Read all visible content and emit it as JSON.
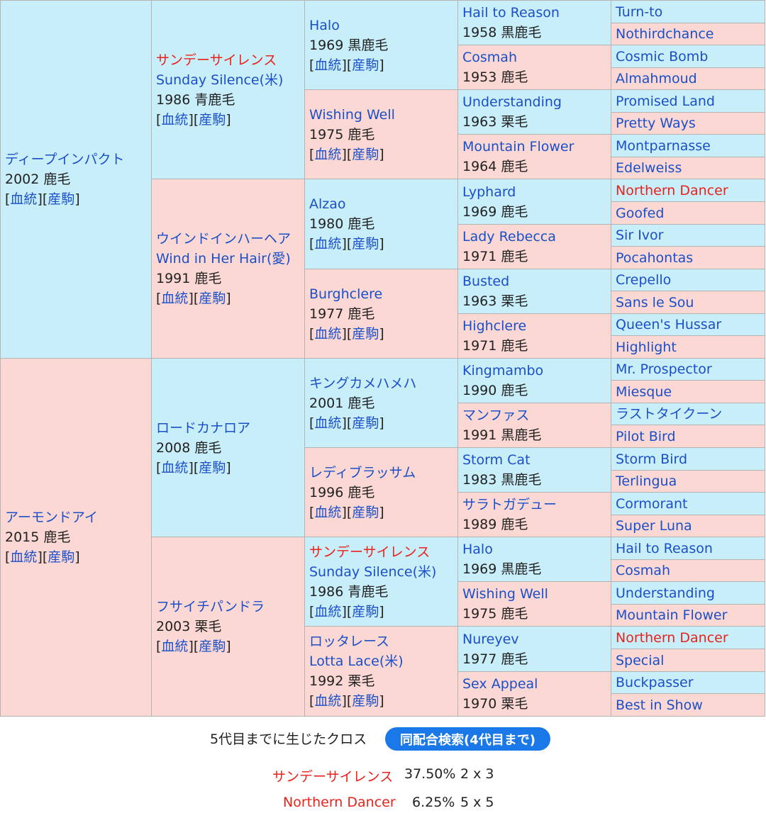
{
  "pedigree": [
    {
      "gen": 1,
      "row": 0,
      "span": 16,
      "sex": "m",
      "name": "ディープインパクト",
      "name_red": false,
      "year_color": "2002 鹿毛",
      "links": true
    },
    {
      "gen": 1,
      "row": 16,
      "span": 16,
      "sex": "f",
      "name": "アーモンドアイ",
      "name_red": false,
      "year_color": "2015 鹿毛",
      "links": true
    },
    {
      "gen": 2,
      "row": 0,
      "span": 8,
      "sex": "m",
      "name": "サンデーサイレンス",
      "name_red": true,
      "subname": "Sunday Silence(米)",
      "year_color": "1986 青鹿毛",
      "links": true
    },
    {
      "gen": 2,
      "row": 8,
      "span": 8,
      "sex": "f",
      "name": "ウインドインハーヘア",
      "name_red": false,
      "subname": "Wind in Her Hair(愛)",
      "year_color": "1991 鹿毛",
      "links": true
    },
    {
      "gen": 2,
      "row": 16,
      "span": 8,
      "sex": "m",
      "name": "ロードカナロア",
      "name_red": false,
      "year_color": "2008 鹿毛",
      "links": true
    },
    {
      "gen": 2,
      "row": 24,
      "span": 8,
      "sex": "f",
      "name": "フサイチパンドラ",
      "name_red": false,
      "year_color": "2003 栗毛",
      "links": true
    },
    {
      "gen": 3,
      "row": 0,
      "span": 4,
      "sex": "m",
      "name": "Halo",
      "name_red": false,
      "year_color": "1969 黒鹿毛",
      "links": true
    },
    {
      "gen": 3,
      "row": 4,
      "span": 4,
      "sex": "f",
      "name": "Wishing Well",
      "name_red": false,
      "year_color": "1975 鹿毛",
      "links": true
    },
    {
      "gen": 3,
      "row": 8,
      "span": 4,
      "sex": "m",
      "name": "Alzao",
      "name_red": false,
      "year_color": "1980 鹿毛",
      "links": true
    },
    {
      "gen": 3,
      "row": 12,
      "span": 4,
      "sex": "f",
      "name": "Burghclere",
      "name_red": false,
      "year_color": "1977 鹿毛",
      "links": true
    },
    {
      "gen": 3,
      "row": 16,
      "span": 4,
      "sex": "m",
      "name": "キングカメハメハ",
      "name_red": false,
      "year_color": "2001 鹿毛",
      "links": true
    },
    {
      "gen": 3,
      "row": 20,
      "span": 4,
      "sex": "f",
      "name": "レディブラッサム",
      "name_red": false,
      "year_color": "1996 鹿毛",
      "links": true
    },
    {
      "gen": 3,
      "row": 24,
      "span": 4,
      "sex": "m",
      "name": "サンデーサイレンス",
      "name_red": true,
      "subname": "Sunday Silence(米)",
      "year_color": "1986 青鹿毛",
      "links": true
    },
    {
      "gen": 3,
      "row": 28,
      "span": 4,
      "sex": "f",
      "name": "ロッタレース",
      "name_red": false,
      "subname": "Lotta Lace(米)",
      "year_color": "1992 栗毛",
      "links": true
    },
    {
      "gen": 4,
      "row": 0,
      "span": 2,
      "sex": "m",
      "name": "Hail to Reason",
      "name_red": false,
      "year_color": "1958 黒鹿毛"
    },
    {
      "gen": 4,
      "row": 2,
      "span": 2,
      "sex": "f",
      "name": "Cosmah",
      "name_red": false,
      "year_color": "1953 鹿毛"
    },
    {
      "gen": 4,
      "row": 4,
      "span": 2,
      "sex": "m",
      "name": "Understanding",
      "name_red": false,
      "year_color": "1963 栗毛"
    },
    {
      "gen": 4,
      "row": 6,
      "span": 2,
      "sex": "f",
      "name": "Mountain Flower",
      "name_red": false,
      "year_color": "1964 鹿毛"
    },
    {
      "gen": 4,
      "row": 8,
      "span": 2,
      "sex": "m",
      "name": "Lyphard",
      "name_red": false,
      "year_color": "1969 鹿毛"
    },
    {
      "gen": 4,
      "row": 10,
      "span": 2,
      "sex": "f",
      "name": "Lady Rebecca",
      "name_red": false,
      "year_color": "1971 鹿毛"
    },
    {
      "gen": 4,
      "row": 12,
      "span": 2,
      "sex": "m",
      "name": "Busted",
      "name_red": false,
      "year_color": "1963 栗毛"
    },
    {
      "gen": 4,
      "row": 14,
      "span": 2,
      "sex": "f",
      "name": "Highclere",
      "name_red": false,
      "year_color": "1971 鹿毛"
    },
    {
      "gen": 4,
      "row": 16,
      "span": 2,
      "sex": "m",
      "name": "Kingmambo",
      "name_red": false,
      "year_color": "1990 鹿毛"
    },
    {
      "gen": 4,
      "row": 18,
      "span": 2,
      "sex": "f",
      "name": "マンファス",
      "name_red": false,
      "year_color": "1991 黒鹿毛"
    },
    {
      "gen": 4,
      "row": 20,
      "span": 2,
      "sex": "m",
      "name": "Storm Cat",
      "name_red": false,
      "year_color": "1983 黒鹿毛"
    },
    {
      "gen": 4,
      "row": 22,
      "span": 2,
      "sex": "f",
      "name": "サラトガデュー",
      "name_red": false,
      "year_color": "1989 鹿毛"
    },
    {
      "gen": 4,
      "row": 24,
      "span": 2,
      "sex": "m",
      "name": "Halo",
      "name_red": false,
      "year_color": "1969 黒鹿毛"
    },
    {
      "gen": 4,
      "row": 26,
      "span": 2,
      "sex": "f",
      "name": "Wishing Well",
      "name_red": false,
      "year_color": "1975 鹿毛"
    },
    {
      "gen": 4,
      "row": 28,
      "span": 2,
      "sex": "m",
      "name": "Nureyev",
      "name_red": false,
      "year_color": "1977 鹿毛"
    },
    {
      "gen": 4,
      "row": 30,
      "span": 2,
      "sex": "f",
      "name": "Sex Appeal",
      "name_red": false,
      "year_color": "1970 栗毛"
    },
    {
      "gen": 5,
      "row": 0,
      "span": 1,
      "sex": "m",
      "name": "Turn-to",
      "name_red": false
    },
    {
      "gen": 5,
      "row": 1,
      "span": 1,
      "sex": "f",
      "name": "Nothirdchance",
      "name_red": false
    },
    {
      "gen": 5,
      "row": 2,
      "span": 1,
      "sex": "m",
      "name": "Cosmic Bomb",
      "name_red": false
    },
    {
      "gen": 5,
      "row": 3,
      "span": 1,
      "sex": "f",
      "name": "Almahmoud",
      "name_red": false
    },
    {
      "gen": 5,
      "row": 4,
      "span": 1,
      "sex": "m",
      "name": "Promised Land",
      "name_red": false
    },
    {
      "gen": 5,
      "row": 5,
      "span": 1,
      "sex": "f",
      "name": "Pretty Ways",
      "name_red": false
    },
    {
      "gen": 5,
      "row": 6,
      "span": 1,
      "sex": "m",
      "name": "Montparnasse",
      "name_red": false
    },
    {
      "gen": 5,
      "row": 7,
      "span": 1,
      "sex": "f",
      "name": "Edelweiss",
      "name_red": false
    },
    {
      "gen": 5,
      "row": 8,
      "span": 1,
      "sex": "m",
      "name": "Northern Dancer",
      "name_red": true
    },
    {
      "gen": 5,
      "row": 9,
      "span": 1,
      "sex": "f",
      "name": "Goofed",
      "name_red": false
    },
    {
      "gen": 5,
      "row": 10,
      "span": 1,
      "sex": "m",
      "name": "Sir Ivor",
      "name_red": false
    },
    {
      "gen": 5,
      "row": 11,
      "span": 1,
      "sex": "f",
      "name": "Pocahontas",
      "name_red": false
    },
    {
      "gen": 5,
      "row": 12,
      "span": 1,
      "sex": "m",
      "name": "Crepello",
      "name_red": false
    },
    {
      "gen": 5,
      "row": 13,
      "span": 1,
      "sex": "f",
      "name": "Sans le Sou",
      "name_red": false
    },
    {
      "gen": 5,
      "row": 14,
      "span": 1,
      "sex": "m",
      "name": "Queen's Hussar",
      "name_red": false
    },
    {
      "gen": 5,
      "row": 15,
      "span": 1,
      "sex": "f",
      "name": "Highlight",
      "name_red": false
    },
    {
      "gen": 5,
      "row": 16,
      "span": 1,
      "sex": "m",
      "name": "Mr. Prospector",
      "name_red": false
    },
    {
      "gen": 5,
      "row": 17,
      "span": 1,
      "sex": "f",
      "name": "Miesque",
      "name_red": false
    },
    {
      "gen": 5,
      "row": 18,
      "span": 1,
      "sex": "m",
      "name": "ラストタイクーン",
      "name_red": false
    },
    {
      "gen": 5,
      "row": 19,
      "span": 1,
      "sex": "f",
      "name": "Pilot Bird",
      "name_red": false
    },
    {
      "gen": 5,
      "row": 20,
      "span": 1,
      "sex": "m",
      "name": "Storm Bird",
      "name_red": false
    },
    {
      "gen": 5,
      "row": 21,
      "span": 1,
      "sex": "f",
      "name": "Terlingua",
      "name_red": false
    },
    {
      "gen": 5,
      "row": 22,
      "span": 1,
      "sex": "m",
      "name": "Cormorant",
      "name_red": false
    },
    {
      "gen": 5,
      "row": 23,
      "span": 1,
      "sex": "f",
      "name": "Super Luna",
      "name_red": false
    },
    {
      "gen": 5,
      "row": 24,
      "span": 1,
      "sex": "m",
      "name": "Hail to Reason",
      "name_red": false
    },
    {
      "gen": 5,
      "row": 25,
      "span": 1,
      "sex": "f",
      "name": "Cosmah",
      "name_red": false
    },
    {
      "gen": 5,
      "row": 26,
      "span": 1,
      "sex": "m",
      "name": "Understanding",
      "name_red": false
    },
    {
      "gen": 5,
      "row": 27,
      "span": 1,
      "sex": "f",
      "name": "Mountain Flower",
      "name_red": false
    },
    {
      "gen": 5,
      "row": 28,
      "span": 1,
      "sex": "m",
      "name": "Northern Dancer",
      "name_red": true
    },
    {
      "gen": 5,
      "row": 29,
      "span": 1,
      "sex": "f",
      "name": "Special",
      "name_red": false
    },
    {
      "gen": 5,
      "row": 30,
      "span": 1,
      "sex": "m",
      "name": "Buckpasser",
      "name_red": false
    },
    {
      "gen": 5,
      "row": 31,
      "span": 1,
      "sex": "f",
      "name": "Best in Show",
      "name_red": false
    }
  ],
  "link_labels": {
    "open": "[",
    "bloodline": "血統",
    "mid": "][",
    "foals": "産駒",
    "close": "]"
  },
  "crosses": {
    "title": "5代目までに生じたクロス",
    "search_button": "同配合検索(4代目まで)",
    "items": [
      {
        "name": "サンデーサイレンス",
        "percent": "37.50%",
        "gens": "2 x 3"
      },
      {
        "name": "Northern Dancer",
        "percent": "6.25%",
        "gens": "5 x 5"
      }
    ]
  },
  "colors": {
    "male_bg": "#c8eefa",
    "female_bg": "#fbd8d4",
    "link": "#1b4fc8",
    "highlight": "#e8231c",
    "button": "#1a78e8"
  }
}
